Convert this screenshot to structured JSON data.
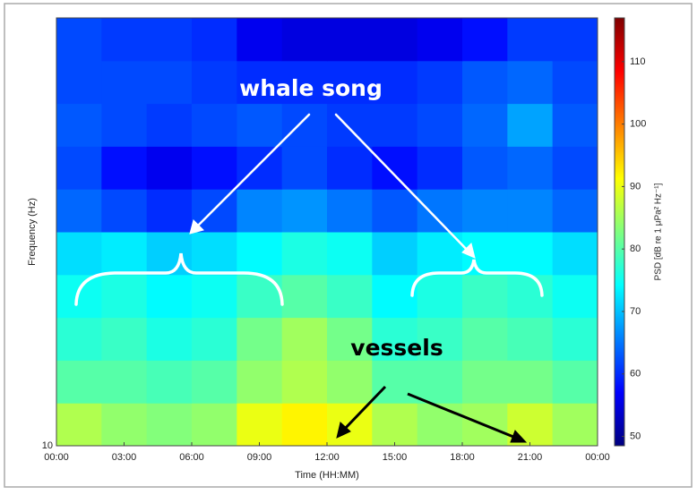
{
  "chart_data": {
    "type": "heatmap",
    "x_bins": [
      0,
      2,
      4,
      6,
      8,
      10,
      12,
      14,
      16,
      18,
      20,
      22,
      24
    ],
    "y_bins": [
      10,
      15.85,
      25.12,
      39.81,
      63.1,
      100,
      158.5,
      251.2,
      398.1,
      631,
      1000
    ],
    "z": [
      [
        86,
        84,
        83,
        84,
        90,
        92,
        90,
        86,
        84,
        85,
        88,
        85
      ],
      [
        80,
        80,
        79,
        80,
        84,
        86,
        84,
        80,
        80,
        82,
        82,
        80
      ],
      [
        77,
        78,
        76,
        77,
        82,
        85,
        82,
        77,
        78,
        80,
        79,
        77
      ],
      [
        75,
        76,
        74,
        75,
        78,
        80,
        78,
        74,
        76,
        78,
        77,
        75
      ],
      [
        72,
        73,
        71,
        72,
        74,
        76,
        75,
        71,
        73,
        74,
        74,
        72
      ],
      [
        64,
        62,
        60,
        62,
        66,
        67,
        65,
        63,
        65,
        66,
        66,
        64
      ],
      [
        62,
        58,
        56,
        58,
        60,
        62,
        60,
        58,
        60,
        63,
        64,
        62
      ],
      [
        63,
        62,
        61,
        62,
        63,
        62,
        61,
        61,
        62,
        64,
        68,
        63
      ],
      [
        62,
        62,
        62,
        61,
        60,
        60,
        60,
        60,
        61,
        63,
        64,
        62
      ],
      [
        62,
        61,
        61,
        60,
        56,
        55,
        55,
        55,
        56,
        58,
        61,
        61
      ]
    ],
    "xlim": [
      0,
      24
    ],
    "xticks": [
      {
        "value": 0,
        "label": "00:00"
      },
      {
        "value": 3,
        "label": "03:00"
      },
      {
        "value": 6,
        "label": "06:00"
      },
      {
        "value": 9,
        "label": "09:00"
      },
      {
        "value": 12,
        "label": "12:00"
      },
      {
        "value": 15,
        "label": "15:00"
      },
      {
        "value": 18,
        "label": "18:00"
      },
      {
        "value": 21,
        "label": "21:00"
      },
      {
        "value": 24,
        "label": "00:00"
      }
    ],
    "ylim": [
      10,
      1000
    ],
    "yticks": [
      10
    ],
    "log_y": true,
    "clim": [
      48.5,
      117
    ],
    "cticks": [
      50,
      60,
      70,
      80,
      90,
      100,
      110
    ],
    "colormap": [
      "#00007f",
      "#0000ff",
      "#007fff",
      "#00ffff",
      "#7fff7f",
      "#ffff00",
      "#ff7f00",
      "#ff0000",
      "#7f0000"
    ],
    "xlabel": "Time (HH:MM)",
    "ylabel": "Frequency (Hz)",
    "clabel": "PSD [dB re 1 μPa² Hz⁻¹]",
    "annotations": [
      {
        "text": "whale song"
      },
      {
        "text": "vessels"
      }
    ]
  }
}
